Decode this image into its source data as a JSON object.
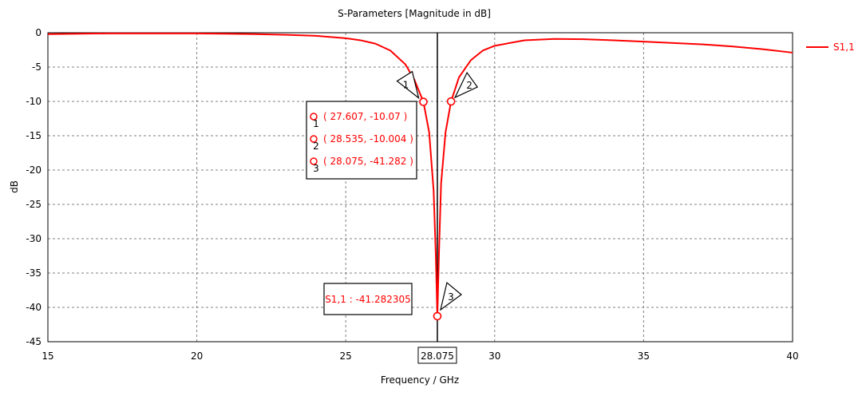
{
  "chart_data": {
    "type": "line",
    "title": "S-Parameters [Magnitude in dB]",
    "xlabel": "Frequency / GHz",
    "ylabel": "dB",
    "xlim": [
      15,
      40
    ],
    "ylim": [
      -45,
      0
    ],
    "xticks": [
      "15",
      "20",
      "25",
      "28.075",
      "30",
      "35",
      "40"
    ],
    "yticks": [
      "0",
      "-5",
      "-10",
      "-15",
      "-20",
      "-25",
      "-30",
      "-35",
      "-40",
      "-45"
    ],
    "grid": true,
    "legend_position": "right",
    "series": [
      {
        "name": "S1,1",
        "color": "#ff0000",
        "x": [
          15,
          16,
          17,
          18,
          19,
          20,
          21,
          22,
          23,
          24,
          25,
          25.5,
          26,
          26.5,
          27,
          27.3,
          27.607,
          27.8,
          27.95,
          28.02,
          28.075,
          28.13,
          28.2,
          28.35,
          28.535,
          28.8,
          29.2,
          29.6,
          30,
          31,
          32,
          33,
          34,
          35,
          36,
          37,
          38,
          39,
          40
        ],
        "y": [
          -0.2,
          -0.15,
          -0.1,
          -0.1,
          -0.1,
          -0.1,
          -0.15,
          -0.2,
          -0.3,
          -0.45,
          -0.8,
          -1.1,
          -1.6,
          -2.6,
          -4.6,
          -6.8,
          -10.07,
          -14.5,
          -23.0,
          -32.0,
          -41.282,
          -32.0,
          -22.0,
          -14.5,
          -10.004,
          -6.5,
          -4.0,
          -2.6,
          -1.9,
          -1.1,
          -0.9,
          -0.95,
          -1.1,
          -1.3,
          -1.5,
          -1.7,
          -2.0,
          -2.4,
          -2.9
        ]
      }
    ],
    "markers": [
      {
        "id": "1",
        "x": 27.607,
        "y": -10.07,
        "label": "( 27.607, -10.07 )"
      },
      {
        "id": "2",
        "x": 28.535,
        "y": -10.004,
        "label": "( 28.535, -10.004 )"
      },
      {
        "id": "3",
        "x": 28.075,
        "y": -41.282,
        "label": "( 28.075, -41.282 )"
      }
    ],
    "cursor_x": 28.075,
    "cursor_label": "28.075",
    "marker_readout": "S1,1 : -41.282305"
  }
}
